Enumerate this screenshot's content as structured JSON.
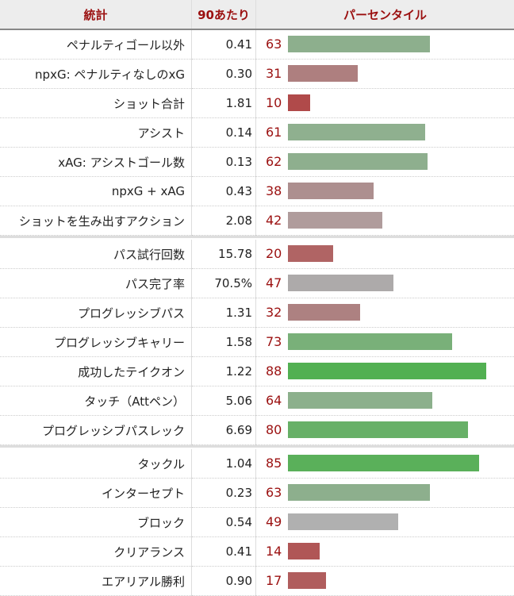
{
  "header": {
    "stat": "統計",
    "per90": "90あたり",
    "percentile": "パーセンタイル"
  },
  "groups": [
    [
      {
        "stat": "ペナルティゴール以外",
        "per90": "0.41",
        "percentile": 63,
        "color": "#8daf8d"
      },
      {
        "stat": "npxG: ペナルティなしのxG",
        "per90": "0.30",
        "percentile": 31,
        "color": "#ae7f7f"
      },
      {
        "stat": "ショット合計",
        "per90": "1.81",
        "percentile": 10,
        "color": "#b04a4a"
      },
      {
        "stat": "アシスト",
        "per90": "0.14",
        "percentile": 61,
        "color": "#8fb08f"
      },
      {
        "stat": "xAG: アシストゴール数",
        "per90": "0.13",
        "percentile": 62,
        "color": "#8eaf8e"
      },
      {
        "stat": "npxG + xAG",
        "per90": "0.43",
        "percentile": 38,
        "color": "#ad8f8f"
      },
      {
        "stat": "ショットを生み出すアクション",
        "per90": "2.08",
        "percentile": 42,
        "color": "#b09c9c"
      }
    ],
    [
      {
        "stat": "パス試行回数",
        "per90": "15.78",
        "percentile": 20,
        "color": "#b06464"
      },
      {
        "stat": "パス完了率",
        "per90": "70.5%",
        "percentile": 47,
        "color": "#adaaaa"
      },
      {
        "stat": "プログレッシブパス",
        "per90": "1.31",
        "percentile": 32,
        "color": "#ad8181"
      },
      {
        "stat": "プログレッシブキャリー",
        "per90": "1.58",
        "percentile": 73,
        "color": "#79b079"
      },
      {
        "stat": "成功したテイクオン",
        "per90": "1.22",
        "percentile": 88,
        "color": "#52b052"
      },
      {
        "stat": "タッチ（Attペン）",
        "per90": "5.06",
        "percentile": 64,
        "color": "#8cb08c"
      },
      {
        "stat": "プログレッシブパスレック",
        "per90": "6.69",
        "percentile": 80,
        "color": "#67b067"
      }
    ],
    [
      {
        "stat": "タックル",
        "per90": "1.04",
        "percentile": 85,
        "color": "#5ab05a"
      },
      {
        "stat": "インターセプト",
        "per90": "0.23",
        "percentile": 63,
        "color": "#8daf8d"
      },
      {
        "stat": "ブロック",
        "per90": "0.54",
        "percentile": 49,
        "color": "#b0b0b0"
      },
      {
        "stat": "クリアランス",
        "per90": "0.41",
        "percentile": 14,
        "color": "#b05656"
      },
      {
        "stat": "エアリアル勝利",
        "per90": "0.90",
        "percentile": 17,
        "color": "#b05d5d"
      }
    ]
  ]
}
